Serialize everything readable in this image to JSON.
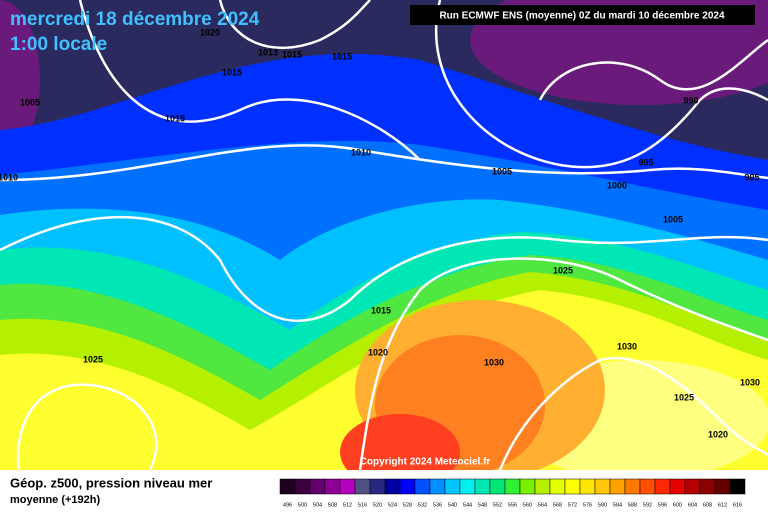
{
  "header": {
    "date": "mercredi 18 décembre 2024",
    "time": "1:00 locale",
    "run": "Run ECMWF ENS (moyenne) 0Z du mardi 10 décembre 2024"
  },
  "isobar_labels": [
    "1020",
    "1013",
    "1015",
    "1015",
    "1015",
    "1005",
    "1015",
    "1010",
    "1005",
    "995",
    "1000",
    "995",
    "1010",
    "990",
    "1005",
    "1025",
    "1015",
    "1020",
    "1030",
    "1030",
    "1025",
    "1030",
    "1025",
    "1020"
  ],
  "copyright": "Copyright 2024 Meteociel.fr",
  "legend": {
    "title": "Géop. z500, pression niveau mer",
    "subtitle": "moyenne  (+192h)",
    "scale": [
      496,
      500,
      504,
      508,
      512,
      516,
      520,
      524,
      528,
      532,
      536,
      540,
      544,
      548,
      552,
      556,
      560,
      564,
      568,
      572,
      576,
      580,
      584,
      588,
      592,
      596,
      600,
      604,
      608,
      612,
      616
    ],
    "colors": [
      "#200020",
      "#3c003c",
      "#64006e",
      "#8c0096",
      "#b400be",
      "#505080",
      "#282880",
      "#0000a0",
      "#0000ff",
      "#0050ff",
      "#0090ff",
      "#00c8ff",
      "#00f0f0",
      "#00e6b4",
      "#00e678",
      "#32f032",
      "#78f000",
      "#b4f000",
      "#e6ff00",
      "#ffff00",
      "#ffe600",
      "#ffc800",
      "#ffa000",
      "#ff7800",
      "#ff5000",
      "#ff2800",
      "#e60000",
      "#b40000",
      "#8c0000",
      "#640000",
      "#000000"
    ]
  }
}
